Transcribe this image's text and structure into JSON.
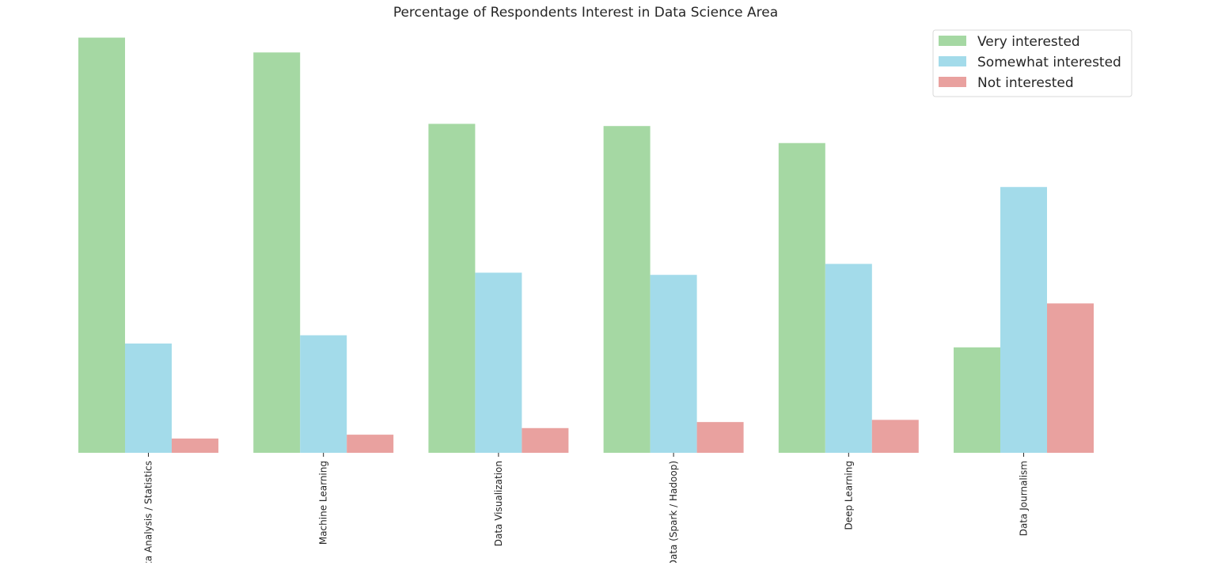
{
  "chart_data": {
    "type": "bar",
    "title": "Percentage of Respondents Interest in Data Science Area",
    "xlabel": "",
    "ylabel": "",
    "categories": [
      "Data Analysis / Statistics",
      "Machine Learning",
      "Data Visualization",
      "Big Data (Spark / Hadoop)",
      "Deep Learning",
      "Data Journalism"
    ],
    "series": [
      {
        "name": "Very interested",
        "color": "#a5d8a3",
        "values": [
          75.6,
          72.9,
          59.9,
          59.5,
          56.4,
          19.2
        ]
      },
      {
        "name": "Somewhat interested",
        "color": "#a3dbea",
        "values": [
          19.9,
          21.4,
          32.8,
          32.4,
          34.4,
          48.4
        ]
      },
      {
        "name": "Not interested",
        "color": "#e9a19f",
        "values": [
          2.6,
          3.3,
          4.5,
          5.6,
          6.0,
          27.2
        ]
      }
    ],
    "ylim": [
      0,
      80
    ],
    "y_axis_visible": false,
    "grid": false,
    "legend_position": "top-right"
  }
}
